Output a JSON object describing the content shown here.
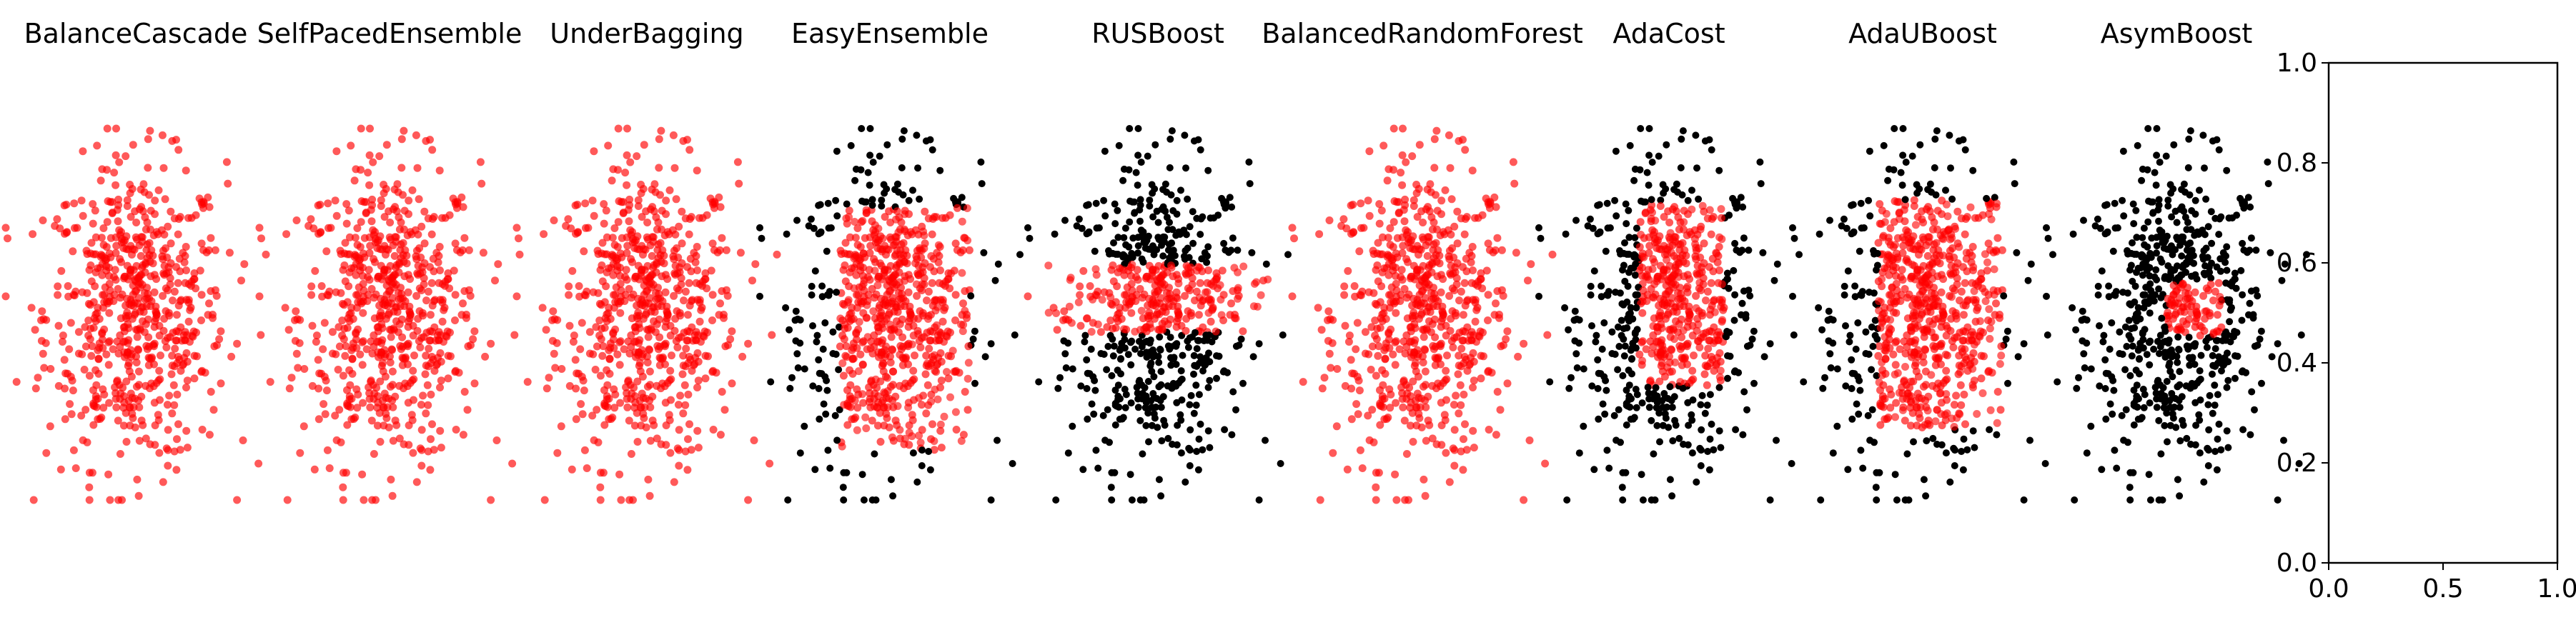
{
  "colors": {
    "background": "#ffffff",
    "majority": "#000000",
    "minority": "#ff0000",
    "axis": "#000000"
  },
  "chart_data": {
    "type": "scatter",
    "panels": [
      {
        "title": "BalanceCascade",
        "shows_majority": false,
        "minority_region": "full"
      },
      {
        "title": "SelfPacedEnsemble",
        "shows_majority": false,
        "minority_region": "full"
      },
      {
        "title": "UnderBagging",
        "shows_majority": false,
        "minority_region": "full"
      },
      {
        "title": "EasyEnsemble",
        "shows_majority": true,
        "minority_region": "wide-block"
      },
      {
        "title": "RUSBoost",
        "shows_majority": true,
        "minority_region": "horizontal-band"
      },
      {
        "title": "BalancedRandomForest",
        "shows_majority": false,
        "minority_region": "full"
      },
      {
        "title": "AdaCost",
        "shows_majority": true,
        "minority_region": "left-block"
      },
      {
        "title": "AdaUBoost",
        "shows_majority": true,
        "minority_region": "tall-block"
      },
      {
        "title": "AsymBoost",
        "shows_majority": true,
        "minority_region": "small-square"
      }
    ],
    "empty_axes": {
      "xlim": [
        0.0,
        1.0
      ],
      "ylim": [
        0.0,
        1.0
      ],
      "xticks": [
        "0.0",
        "0.5",
        "1.0"
      ],
      "yticks": [
        "0.0",
        "0.2",
        "0.4",
        "0.6",
        "0.8",
        "1.0"
      ],
      "grid": false
    }
  }
}
